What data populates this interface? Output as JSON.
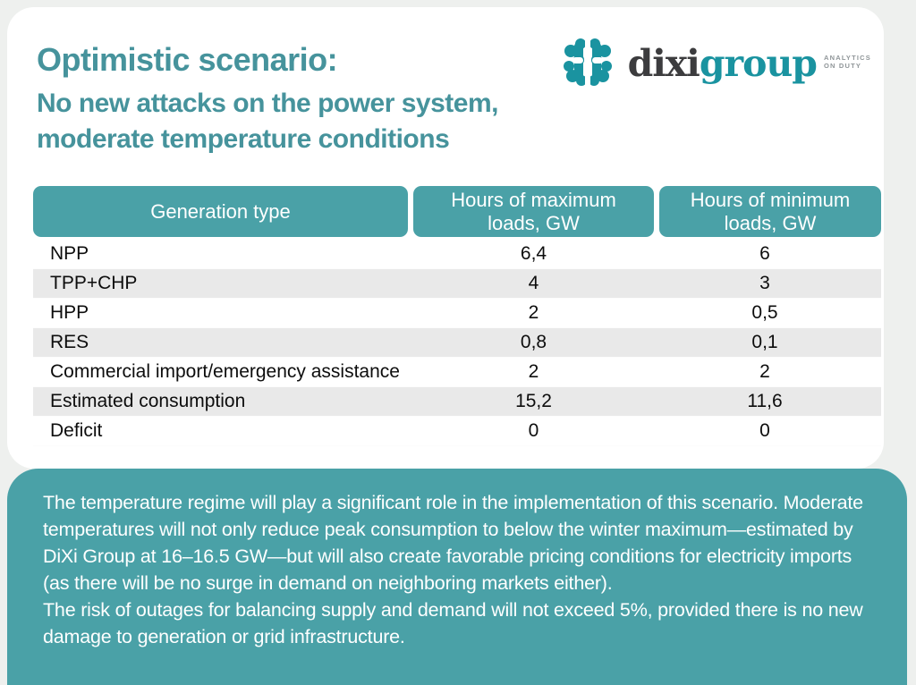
{
  "page": {
    "background": "#eef0ee",
    "accent_teal": "#4aa1a7",
    "title_teal": "#46939c",
    "row_stripe": "#e9e9e9"
  },
  "header": {
    "title": "Optimistic scenario:",
    "subtitle_line1": "No new attacks on the power system,",
    "subtitle_line2": "moderate temperature conditions"
  },
  "logo": {
    "icon": "dixi-brain-icon",
    "word_dark": "dixi",
    "word_teal": "group",
    "tagline_line1": "ANALYTICS",
    "tagline_line2": "ON DUTY"
  },
  "table": {
    "columns": [
      "Generation type",
      "Hours of maximum loads, GW",
      "Hours of minimum loads, GW"
    ],
    "rows": [
      {
        "label": "NPP",
        "max": "6,4",
        "min": "6"
      },
      {
        "label": "TPP+CHP",
        "max": "4",
        "min": "3"
      },
      {
        "label": "HPP",
        "max": "2",
        "min": "0,5"
      },
      {
        "label": "RES",
        "max": "0,8",
        "min": "0,1"
      },
      {
        "label": "Commercial import/emergency assistance",
        "max": "2",
        "min": "2"
      },
      {
        "label": "Estimated consumption",
        "max": "15,2",
        "min": "11,6"
      },
      {
        "label": "Deficit",
        "max": "0",
        "min": "0"
      }
    ]
  },
  "note": {
    "paragraph1": "The temperature regime will play a significant role in the implementation of this scenario. Moderate temperatures will not only reduce peak consumption to below the winter maximum—estimated by DiXi Group at 16–16.5 GW—but will also create favorable pricing conditions for electricity imports (as there will be no surge in demand on neighboring markets either).",
    "paragraph2": "The risk of outages for balancing supply and demand will not exceed 5%, provided there is no new damage to generation or grid infrastructure."
  }
}
